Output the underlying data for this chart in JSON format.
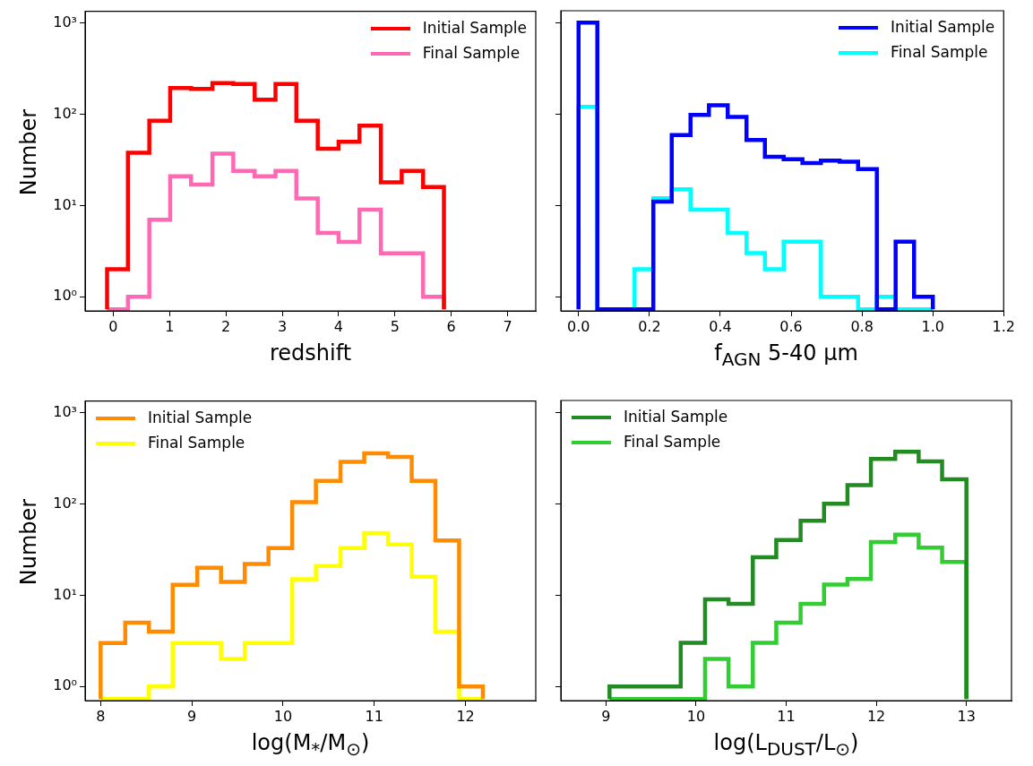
{
  "chart_data": [
    {
      "type": "histogram",
      "xlabel": "redshift",
      "ylabel": "Number",
      "xlim": [
        -0.5,
        7.5
      ],
      "xticks": [
        0,
        1,
        2,
        3,
        4,
        5,
        6,
        7
      ],
      "ylim": [
        0.73,
        1350
      ],
      "yticks": [
        {
          "value": 1,
          "label": "10⁰"
        },
        {
          "value": 10,
          "label": "10¹"
        },
        {
          "value": 100,
          "label": "10²"
        },
        {
          "value": 1000,
          "label": "10³"
        }
      ],
      "log": "y",
      "legend": "top right",
      "bins": [
        -0.11,
        0.26,
        0.64,
        1.01,
        1.38,
        1.76,
        2.13,
        2.51,
        2.88,
        3.25,
        3.63,
        4.0,
        4.37,
        4.75,
        5.12,
        5.5,
        5.87
      ],
      "series": [
        {
          "name": "Initial Sample",
          "color": "#ff0000",
          "values": [
            2,
            38,
            85,
            195,
            190,
            220,
            215,
            145,
            215,
            85,
            42,
            50,
            75,
            18,
            24,
            16
          ]
        },
        {
          "name": "Final Sample",
          "color": "#ff69b4",
          "values": [
            null,
            1,
            7,
            21,
            17,
            37,
            24,
            21,
            24,
            12,
            5,
            4,
            9,
            3,
            3,
            1
          ]
        }
      ]
    },
    {
      "type": "histogram",
      "xlabel": "f$_{AGN}$ 5-40 μm",
      "xlim": [
        -0.05,
        1.2
      ],
      "xticks": [
        {
          "value": 0,
          "label": "0.0"
        },
        {
          "value": 0.2,
          "label": "0.2"
        },
        {
          "value": 0.4,
          "label": "0.4"
        },
        {
          "value": 0.6,
          "label": "0.6"
        },
        {
          "value": 0.8,
          "label": "0.8"
        },
        {
          "value": 1,
          "label": "1.0"
        },
        {
          "value": 1.2,
          "label": "1.2"
        }
      ],
      "ylim": [
        0.73,
        1350
      ],
      "yticks": [
        {
          "value": 1,
          "label": null
        },
        {
          "value": 10,
          "label": null
        },
        {
          "value": 100,
          "label": null
        },
        {
          "value": 1000,
          "label": null
        }
      ],
      "log": "y",
      "legend": "top right",
      "tick_labels": "x",
      "bins": [
        0,
        0.053,
        0.105,
        0.158,
        0.211,
        0.263,
        0.316,
        0.368,
        0.421,
        0.474,
        0.526,
        0.579,
        0.632,
        0.684,
        0.737,
        0.789,
        0.842,
        0.895,
        0.947,
        1.0
      ],
      "series": [
        {
          "name": "Initial Sample",
          "color": "#0000ff",
          "values": [
            1000,
            null,
            null,
            null,
            11,
            59,
            98,
            125,
            93,
            52,
            34,
            32,
            29,
            31,
            30,
            25,
            null,
            4,
            1
          ]
        },
        {
          "name": "Final Sample",
          "color": "#00ffff",
          "values": [
            120,
            null,
            null,
            2,
            12,
            15,
            9,
            9,
            5,
            3,
            2,
            4,
            4,
            1,
            1,
            null,
            1,
            null,
            null
          ]
        }
      ]
    },
    {
      "type": "histogram",
      "xlabel": "log(M$_{*}$/M$_{⊙}$)",
      "ylabel": "Number",
      "xlim": [
        7.83,
        12.77
      ],
      "xticks": [
        8,
        9,
        10,
        11,
        12
      ],
      "ylim": [
        0.73,
        1350
      ],
      "yticks": [
        {
          "value": 1,
          "label": "10⁰"
        },
        {
          "value": 10,
          "label": "10¹"
        },
        {
          "value": 100,
          "label": "10²"
        },
        {
          "value": 1000,
          "label": "10³"
        }
      ],
      "log": "y",
      "legend": "top left",
      "bins": [
        8.0,
        8.27,
        8.53,
        8.79,
        9.06,
        9.32,
        9.58,
        9.84,
        10.1,
        10.36,
        10.63,
        10.89,
        11.15,
        11.41,
        11.67,
        11.93,
        12.19
      ],
      "series": [
        {
          "name": "Initial Sample",
          "color": "#ff8c00",
          "values": [
            3,
            5,
            4,
            13,
            20,
            14,
            22,
            33,
            105,
            180,
            290,
            360,
            330,
            180,
            40,
            1
          ]
        },
        {
          "name": "Final Sample",
          "color": "#ffff00",
          "values": [
            null,
            null,
            1,
            3,
            3,
            2,
            3,
            3,
            15,
            21,
            33,
            48,
            36,
            16,
            4,
            null
          ]
        }
      ]
    },
    {
      "type": "histogram",
      "xlabel": "log(L$_{DUST}$/L$_{⊙}$)",
      "xlim": [
        8.5,
        13.5
      ],
      "xticks": [
        9,
        10,
        11,
        12,
        13
      ],
      "ylim": [
        0.73,
        1350
      ],
      "yticks": [
        {
          "value": 1,
          "label": null
        },
        {
          "value": 10,
          "label": null
        },
        {
          "value": 100,
          "label": null
        },
        {
          "value": 1000,
          "label": null
        }
      ],
      "log": "y",
      "legend": "top left",
      "tick_labels": "x",
      "bins": [
        9.04,
        9.3,
        9.57,
        9.83,
        10.1,
        10.36,
        10.63,
        10.89,
        11.16,
        11.42,
        11.68,
        11.94,
        12.21,
        12.47,
        12.73,
        13.0
      ],
      "series": [
        {
          "name": "Initial Sample",
          "color": "#228b22",
          "values": [
            1,
            1,
            1,
            3,
            9,
            8,
            26,
            40,
            65,
            100,
            160,
            310,
            370,
            290,
            185
          ]
        },
        {
          "name": "Final Sample",
          "color": "#32cd32",
          "values": [
            null,
            null,
            null,
            null,
            2,
            1,
            3,
            5,
            8,
            13,
            15,
            38,
            46,
            33,
            23
          ]
        }
      ]
    }
  ]
}
